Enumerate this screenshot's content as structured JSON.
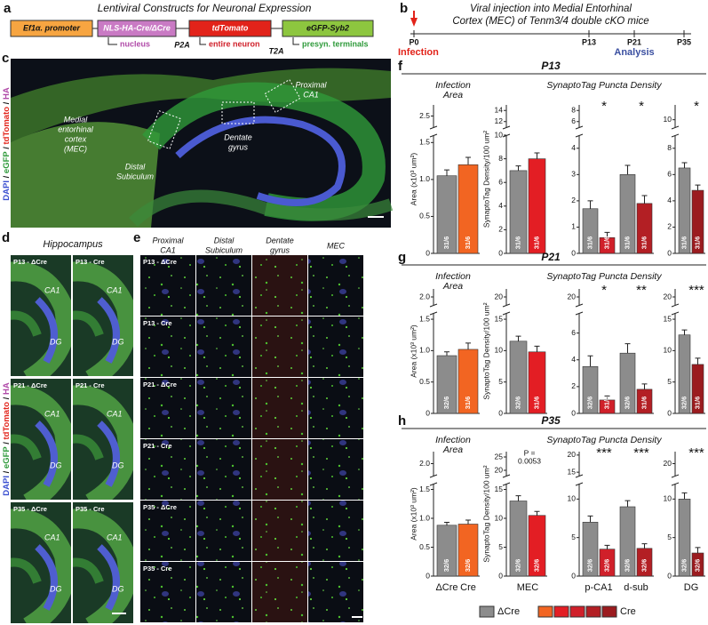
{
  "panel_a": {
    "label": "a",
    "title": "Lentiviral Constructs for Neuronal Expression",
    "boxes": [
      "Ef1α. promoter",
      "NLS-HA-Cre/ΔCre",
      "tdTomato",
      "eGFP-Syb2"
    ],
    "linkers": [
      "P2A",
      "T2A"
    ],
    "targets": [
      "nucleus",
      "entire neuron",
      "presyn. terminals"
    ]
  },
  "panel_b": {
    "label": "b",
    "title_lines": [
      "Viral injection into Medial Entorhinal",
      "Cortex (MEC) of Tenm3/4 double cKO mice"
    ],
    "timepoints": [
      "P0",
      "P13",
      "P21",
      "P35"
    ],
    "infection": "Infection",
    "analysis": "Analysis"
  },
  "panel_c": {
    "label": "c",
    "stain": [
      "DAPI",
      "eGFP",
      "tdTomato",
      "HA"
    ],
    "stain_separator": " / ",
    "regions": [
      [
        "Medial",
        "entorhinal",
        "cortex",
        "(MEC)"
      ],
      [
        "Distal",
        "Subiculum"
      ],
      [
        "Dentate",
        "gyrus"
      ],
      [
        "Proximal",
        "CA1"
      ]
    ]
  },
  "panel_d": {
    "label": "d",
    "title": "Hippocampus",
    "tiles": [
      "P13 - ΔCre",
      "P13 - Cre",
      "P21 - ΔCre",
      "P21 - Cre",
      "P35 - ΔCre",
      "P35 - Cre"
    ],
    "ca1": "CA1",
    "dg": "DG"
  },
  "panel_e": {
    "label": "e",
    "columns": [
      [
        "Proximal",
        "CA1"
      ],
      [
        "Distal",
        "Subiculum"
      ],
      [
        "Dentate",
        "gyrus"
      ],
      [
        "MEC"
      ]
    ],
    "rows": [
      "P13 - ΔCre",
      "P13 - Cre",
      "P21 - ΔCre",
      "P21 - Cre",
      "P35 - ΔCre",
      "P35 - Cre"
    ]
  },
  "legend": {
    "labels": [
      "ΔCre",
      "Cre"
    ],
    "colors": [
      "#8c8c8c"
    ],
    "cre_colors": [
      "#f26522",
      "#e31e24",
      "#d0202a",
      "#b31f24",
      "#9b1b1f"
    ]
  },
  "chart_data": [
    {
      "type": "bar",
      "label": "f",
      "title": "P13",
      "subtitle_area": [
        "Infection",
        "Area"
      ],
      "subtitle_density": "SynaptoTag Puncta Density",
      "panels": [
        {
          "ylabel": "Area (x10³ um²)",
          "ylim": [
            0,
            1.6
          ],
          "yticks": [
            0,
            0.5,
            {
              "value": 1,
              "label": "1.0"
            },
            1.5
          ],
          "upper_ylim": [
            2,
            3
          ],
          "upper_yticks": [
            2.5
          ],
          "groups": [
            {
              "values": [
                1.05,
                1.2
              ],
              "errors": [
                0.08,
                0.1
              ],
              "colors": [
                "#8c8c8c",
                "#f26522"
              ],
              "n_labels": [
                "31/6",
                "31/6"
              ]
            }
          ]
        },
        {
          "ylabel": "SynaptoTag Density/100 um²",
          "ylim": [
            0,
            10
          ],
          "yticks": [
            0,
            2,
            4,
            6,
            8,
            10
          ],
          "upper_ylim": [
            11,
            15
          ],
          "upper_yticks": [
            12,
            14
          ],
          "groups": [
            {
              "values": [
                7.0,
                8.0
              ],
              "errors": [
                0.4,
                0.5
              ],
              "colors": [
                "#8c8c8c",
                "#e31e24"
              ],
              "n_labels": [
                "31/6",
                "31/6"
              ]
            }
          ]
        },
        {
          "ylim": [
            0,
            4.5
          ],
          "yticks": [
            0,
            1,
            2,
            3,
            4
          ],
          "upper_ylim": [
            5,
            9
          ],
          "upper_yticks": [
            6,
            8
          ],
          "groups": [
            {
              "values": [
                1.7,
                0.6
              ],
              "errors": [
                0.3,
                0.2
              ],
              "colors": [
                "#8c8c8c",
                "#d0202a"
              ],
              "n_labels": [
                "31/6",
                "31/6"
              ],
              "stars": [
                "*"
              ]
            },
            {
              "values": [
                3.0,
                1.9
              ],
              "errors": [
                0.35,
                0.3
              ],
              "colors": [
                "#8c8c8c",
                "#b31f24"
              ],
              "n_labels": [
                "31/6",
                "31/6"
              ],
              "stars": [
                "*"
              ]
            }
          ]
        },
        {
          "ylim": [
            0,
            9
          ],
          "yticks": [
            0,
            2,
            4,
            6,
            8
          ],
          "upper_ylim": [
            9.5,
            11
          ],
          "upper_yticks": [
            10
          ],
          "groups": [
            {
              "values": [
                6.5,
                4.8
              ],
              "errors": [
                0.4,
                0.4
              ],
              "colors": [
                "#8c8c8c",
                "#9b1b1f"
              ],
              "n_labels": [
                "31/6",
                "31/6"
              ],
              "stars": [
                "*"
              ]
            }
          ]
        }
      ]
    },
    {
      "type": "bar",
      "label": "g",
      "title": "P21",
      "subtitle_area": [
        "Infection",
        "Area"
      ],
      "subtitle_density": "SynaptoTag Puncta Density",
      "panels": [
        {
          "ylabel": "Area (x10³ um²)",
          "ylim": [
            0,
            1.6
          ],
          "yticks": [
            0,
            0.5,
            {
              "value": 1,
              "label": "1.0"
            },
            1.5
          ],
          "upper_ylim": [
            1.8,
            2.2
          ],
          "upper_yticks": [
            {
              "value": 2,
              "label": "2.0"
            }
          ],
          "groups": [
            {
              "values": [
                0.92,
                1.02
              ],
              "errors": [
                0.06,
                0.1
              ],
              "colors": [
                "#8c8c8c",
                "#f26522"
              ],
              "n_labels": [
                "32/6",
                "31/6"
              ]
            }
          ]
        },
        {
          "ylabel": "SynaptoTag Density/100 um²",
          "ylim": [
            0,
            16
          ],
          "yticks": [
            0,
            5,
            10,
            15
          ],
          "upper_ylim": [
            18,
            22
          ],
          "upper_yticks": [
            20
          ],
          "groups": [
            {
              "values": [
                11.5,
                9.8
              ],
              "errors": [
                0.8,
                0.9
              ],
              "colors": [
                "#8c8c8c",
                "#e31e24"
              ],
              "n_labels": [
                "32/6",
                "31/6"
              ]
            }
          ]
        },
        {
          "ylim": [
            0,
            7.5
          ],
          "yticks": [
            0,
            2,
            4,
            6
          ],
          "upper_ylim": [
            18,
            22
          ],
          "upper_yticks": [
            20
          ],
          "groups": [
            {
              "values": [
                3.5,
                1.0
              ],
              "errors": [
                0.8,
                0.3
              ],
              "colors": [
                "#8c8c8c",
                "#d0202a"
              ],
              "n_labels": [
                "32/6",
                "31/6"
              ],
              "stars": [
                "*"
              ]
            },
            {
              "values": [
                4.5,
                1.8
              ],
              "errors": [
                0.7,
                0.4
              ],
              "colors": [
                "#8c8c8c",
                "#b31f24"
              ],
              "n_labels": [
                "32/6",
                "31/6"
              ],
              "stars": [
                "**"
              ]
            }
          ]
        },
        {
          "ylim": [
            0,
            16
          ],
          "yticks": [
            0,
            5,
            10,
            15
          ],
          "upper_ylim": [
            18,
            22
          ],
          "upper_yticks": [
            20
          ],
          "groups": [
            {
              "values": [
                12.5,
                7.8
              ],
              "errors": [
                0.8,
                1.0
              ],
              "colors": [
                "#8c8c8c",
                "#9b1b1f"
              ],
              "n_labels": [
                "32/6",
                "31/6"
              ],
              "stars": [
                "***"
              ]
            }
          ]
        }
      ]
    },
    {
      "type": "bar",
      "label": "h",
      "title": "P35",
      "subtitle_area": [
        "Infection",
        "Area"
      ],
      "subtitle_density": "SynaptoTag Puncta Density",
      "panels": [
        {
          "ylabel": "Area (x10³ um²)",
          "ylim": [
            0,
            1.6
          ],
          "yticks": [
            0,
            0.5,
            {
              "value": 1,
              "label": "1.0"
            },
            1.5
          ],
          "upper_ylim": [
            1.8,
            2.2
          ],
          "upper_yticks": [
            {
              "value": 2,
              "label": "2.0"
            }
          ],
          "groups": [
            {
              "values": [
                0.88,
                0.9
              ],
              "errors": [
                0.05,
                0.07
              ],
              "colors": [
                "#8c8c8c",
                "#f26522"
              ],
              "n_labels": [
                "32/6",
                "32/6"
              ],
              "categories": [
                "ΔCre",
                "Cre"
              ]
            }
          ]
        },
        {
          "ylabel": "SynaptoTag Density/100 um²",
          "ylim": [
            0,
            16
          ],
          "yticks": [
            0,
            5,
            10,
            15
          ],
          "upper_ylim": [
            18,
            27
          ],
          "upper_yticks": [
            20,
            25
          ],
          "groups": [
            {
              "values": [
                13,
                10.5
              ],
              "errors": [
                0.9,
                0.7
              ],
              "colors": [
                "#8c8c8c",
                "#e31e24"
              ],
              "n_labels": [
                "32/6",
                "32/6"
              ],
              "stars": [
                "P =",
                "0.0053"
              ],
              "category": "MEC"
            }
          ]
        },
        {
          "ylim": [
            0,
            12
          ],
          "yticks": [
            0,
            5,
            10
          ],
          "upper_ylim": [
            14,
            21
          ],
          "upper_yticks": [
            15,
            20
          ],
          "groups": [
            {
              "values": [
                7,
                3.5
              ],
              "errors": [
                0.8,
                0.5
              ],
              "colors": [
                "#8c8c8c",
                "#d0202a"
              ],
              "n_labels": [
                "32/6",
                "32/6"
              ],
              "stars": [
                "***"
              ],
              "category": "p-CA1"
            },
            {
              "values": [
                9,
                3.6
              ],
              "errors": [
                0.8,
                0.6
              ],
              "colors": [
                "#8c8c8c",
                "#b31f24"
              ],
              "n_labels": [
                "32/6",
                "32/6"
              ],
              "stars": [
                "***"
              ],
              "category": "d-sub"
            }
          ]
        },
        {
          "ylim": [
            0,
            12
          ],
          "yticks": [
            0,
            5,
            10
          ],
          "upper_ylim": [
            18,
            22
          ],
          "upper_yticks": [
            20
          ],
          "groups": [
            {
              "values": [
                10,
                3
              ],
              "errors": [
                0.8,
                0.7
              ],
              "colors": [
                "#8c8c8c",
                "#9b1b1f"
              ],
              "n_labels": [
                "32/6",
                "32/6"
              ],
              "stars": [
                "***"
              ],
              "category": "DG"
            }
          ]
        }
      ]
    }
  ]
}
